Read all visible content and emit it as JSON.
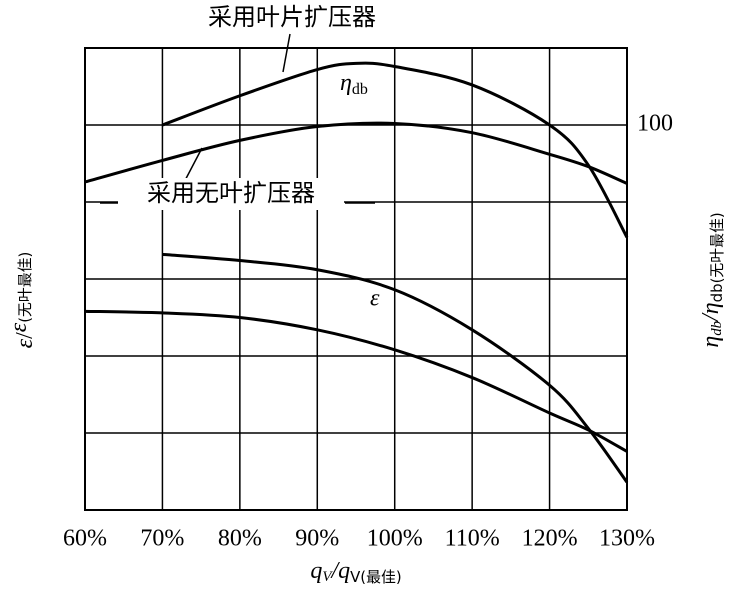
{
  "chart_data": {
    "type": "line",
    "x_label": {
      "parts": [
        "q",
        "V",
        "/q",
        "V(最佳)"
      ]
    },
    "y_label": {
      "parts": [
        "ε",
        "/",
        "ε",
        "(无叶最佳)"
      ]
    },
    "y2_label": {
      "parts": [
        "η",
        "db",
        "/η",
        "db(无叶最佳)"
      ]
    },
    "xlim": [
      60,
      130
    ],
    "xticks": [
      {
        "value": 60,
        "label": "60%"
      },
      {
        "value": 70,
        "label": "70%"
      },
      {
        "value": 80,
        "label": "80%"
      },
      {
        "value": 90,
        "label": "90%"
      },
      {
        "value": 100,
        "label": "100%"
      },
      {
        "value": 110,
        "label": "110%"
      },
      {
        "value": 120,
        "label": "120%"
      },
      {
        "value": 130,
        "label": "130%"
      }
    ],
    "ylim": [
      75,
      105
    ],
    "yticks": [
      {
        "value": 75,
        "label": null
      },
      {
        "value": 80,
        "label": null
      },
      {
        "value": 85,
        "label": null
      },
      {
        "value": 90,
        "label": null
      },
      {
        "value": 95,
        "label": null
      },
      {
        "value": 105,
        "label": null
      }
    ],
    "y2lim": [
      75,
      105
    ],
    "y2ticks": [
      100
    ],
    "grid": true,
    "series": [
      {
        "color": "#000000",
        "x": [
          70,
          80,
          90,
          95,
          100,
          110,
          120,
          125,
          130
        ],
        "values": [
          100,
          101.9,
          103.6,
          104,
          103.8,
          102.6,
          100,
          97.4,
          92.7
        ]
      },
      {
        "color": "#000000",
        "x": [
          60,
          70,
          80,
          90,
          100,
          110,
          120,
          125,
          130
        ],
        "values": [
          96.3,
          97.7,
          99,
          99.9,
          100.1,
          99.5,
          98.1,
          97.3,
          96.2
        ]
      },
      {
        "color": "#000000",
        "x": [
          70,
          80,
          90,
          100,
          110,
          120,
          125,
          130
        ],
        "values": [
          91.6,
          91.2,
          90.6,
          89.3,
          86.7,
          83.1,
          80.3,
          76.8
        ]
      },
      {
        "color": "#000000",
        "x": [
          60,
          70,
          80,
          90,
          100,
          110,
          120,
          125,
          130
        ],
        "values": [
          87.9,
          87.8,
          87.5,
          86.7,
          85.4,
          83.6,
          81.3,
          80.2,
          78.8
        ]
      }
    ],
    "annotations": [
      {
        "text": "采用叶片扩压器"
      },
      {
        "text": "采用无叶扩压器"
      },
      {
        "parts": [
          "η",
          "db"
        ]
      },
      {
        "text": "ε"
      }
    ]
  }
}
